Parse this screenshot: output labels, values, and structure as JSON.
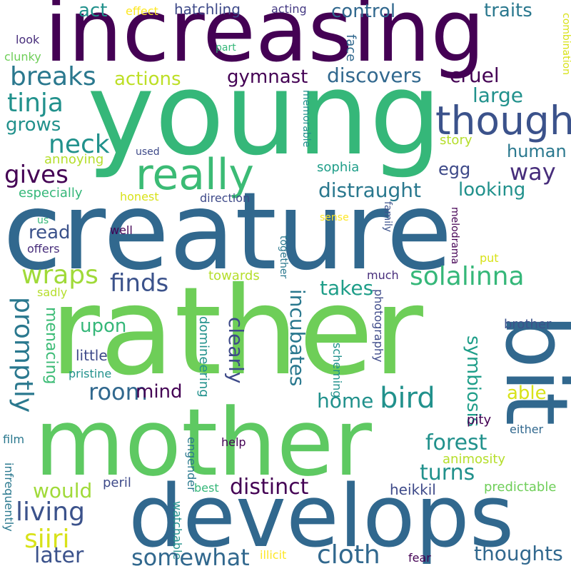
{
  "word_cloud": {
    "words": [
      {
        "text": "increasing",
        "color": "#440154"
      },
      {
        "text": "young",
        "color": "#35b779"
      },
      {
        "text": "creature",
        "color": "#31688e"
      },
      {
        "text": "rather",
        "color": "#6ece58"
      },
      {
        "text": "mother",
        "color": "#5ec962"
      },
      {
        "text": "develops",
        "color": "#31688e"
      },
      {
        "text": "bit",
        "color": "#31688e"
      },
      {
        "text": "really",
        "color": "#3bbb75"
      },
      {
        "text": "though",
        "color": "#3b528b"
      },
      {
        "text": "breaks",
        "color": "#2a788e"
      },
      {
        "text": "tinja",
        "color": "#21918c"
      },
      {
        "text": "neck",
        "color": "#21918c"
      },
      {
        "text": "grows",
        "color": "#21918c"
      },
      {
        "text": "gives",
        "color": "#440154"
      },
      {
        "text": "act",
        "color": "#21918c"
      },
      {
        "text": "actions",
        "color": "#bddf26"
      },
      {
        "text": "gymnast",
        "color": "#440154"
      },
      {
        "text": "discovers",
        "color": "#31688e"
      },
      {
        "text": "cruel",
        "color": "#440154"
      },
      {
        "text": "control",
        "color": "#31688e"
      },
      {
        "text": "traits",
        "color": "#2a788e"
      },
      {
        "text": "hatchling",
        "color": "#3e4a89"
      },
      {
        "text": "acting",
        "color": "#443983"
      },
      {
        "text": "effect",
        "color": "#fde725"
      },
      {
        "text": "look",
        "color": "#472d7b"
      },
      {
        "text": "clunky",
        "color": "#6ece58"
      },
      {
        "text": "part",
        "color": "#35b779"
      },
      {
        "text": "face",
        "color": "#31688e"
      },
      {
        "text": "large",
        "color": "#21918c"
      },
      {
        "text": "combination",
        "color": "#d8e219"
      },
      {
        "text": "annoying",
        "color": "#b5de2b"
      },
      {
        "text": "used",
        "color": "#3e4a89"
      },
      {
        "text": "memorable",
        "color": "#21918c"
      },
      {
        "text": "story",
        "color": "#b5de2b"
      },
      {
        "text": "human",
        "color": "#2a788e"
      },
      {
        "text": "way",
        "color": "#472d7b"
      },
      {
        "text": "egg",
        "color": "#3e4a89"
      },
      {
        "text": "sophia",
        "color": "#1f9e89"
      },
      {
        "text": "especially",
        "color": "#35b779"
      },
      {
        "text": "honest",
        "color": "#d8e219"
      },
      {
        "text": "direction",
        "color": "#3e4a89"
      },
      {
        "text": "distraught",
        "color": "#2a788e"
      },
      {
        "text": "looking",
        "color": "#21918c"
      },
      {
        "text": "us",
        "color": "#35b779"
      },
      {
        "text": "read",
        "color": "#3b528b"
      },
      {
        "text": "well",
        "color": "#440154"
      },
      {
        "text": "offers",
        "color": "#472d7b"
      },
      {
        "text": "sense",
        "color": "#fde725"
      },
      {
        "text": "family",
        "color": "#3b528b"
      },
      {
        "text": "melodrama",
        "color": "#440154"
      },
      {
        "text": "wraps",
        "color": "#a0da39"
      },
      {
        "text": "finds",
        "color": "#3b528b"
      },
      {
        "text": "solalinna",
        "color": "#35b779"
      },
      {
        "text": "towards",
        "color": "#b5de2b"
      },
      {
        "text": "together",
        "color": "#2a788e"
      },
      {
        "text": "much",
        "color": "#472d7b"
      },
      {
        "text": "takes",
        "color": "#1f9e89"
      },
      {
        "text": "put",
        "color": "#d8e219"
      },
      {
        "text": "sadly",
        "color": "#b5de2b"
      },
      {
        "text": "promptly",
        "color": "#2a788e"
      },
      {
        "text": "menacing",
        "color": "#3bbb75"
      },
      {
        "text": "upon",
        "color": "#35b779"
      },
      {
        "text": "clearly",
        "color": "#3e4a89"
      },
      {
        "text": "incubates",
        "color": "#2a788e"
      },
      {
        "text": "scheming",
        "color": "#21918c"
      },
      {
        "text": "photography",
        "color": "#3e4a89"
      },
      {
        "text": "symbiosis",
        "color": "#1f9e89"
      },
      {
        "text": "brother",
        "color": "#3b528b"
      },
      {
        "text": "little",
        "color": "#3e4a89"
      },
      {
        "text": "pristine",
        "color": "#21918c"
      },
      {
        "text": "domineering",
        "color": "#21918c"
      },
      {
        "text": "room",
        "color": "#31688e"
      },
      {
        "text": "mind",
        "color": "#440154"
      },
      {
        "text": "home",
        "color": "#21918c"
      },
      {
        "text": "bird",
        "color": "#21918c"
      },
      {
        "text": "able",
        "color": "#d8e219"
      },
      {
        "text": "forest",
        "color": "#21918c"
      },
      {
        "text": "pity",
        "color": "#440154"
      },
      {
        "text": "either",
        "color": "#31688e"
      },
      {
        "text": "film",
        "color": "#2a788e"
      },
      {
        "text": "help",
        "color": "#440154"
      },
      {
        "text": "engender",
        "color": "#2a788e"
      },
      {
        "text": "animosity",
        "color": "#b5de2b"
      },
      {
        "text": "turns",
        "color": "#21918c"
      },
      {
        "text": "would",
        "color": "#a0da39"
      },
      {
        "text": "peril",
        "color": "#3e4a89"
      },
      {
        "text": "distinct",
        "color": "#440154"
      },
      {
        "text": "heikkil",
        "color": "#3e4a89"
      },
      {
        "text": "predictable",
        "color": "#6ece58"
      },
      {
        "text": "living",
        "color": "#3b528b"
      },
      {
        "text": "best",
        "color": "#35b779"
      },
      {
        "text": "infrequently",
        "color": "#2a788e"
      },
      {
        "text": "siiri",
        "color": "#d8e219"
      },
      {
        "text": "watchable",
        "color": "#21918c"
      },
      {
        "text": "somewhat",
        "color": "#31688e"
      },
      {
        "text": "cloth",
        "color": "#31688e"
      },
      {
        "text": "thoughts",
        "color": "#31688e"
      },
      {
        "text": "later",
        "color": "#3b528b"
      },
      {
        "text": "illicit",
        "color": "#fde725"
      },
      {
        "text": "fear",
        "color": "#440154"
      }
    ]
  }
}
